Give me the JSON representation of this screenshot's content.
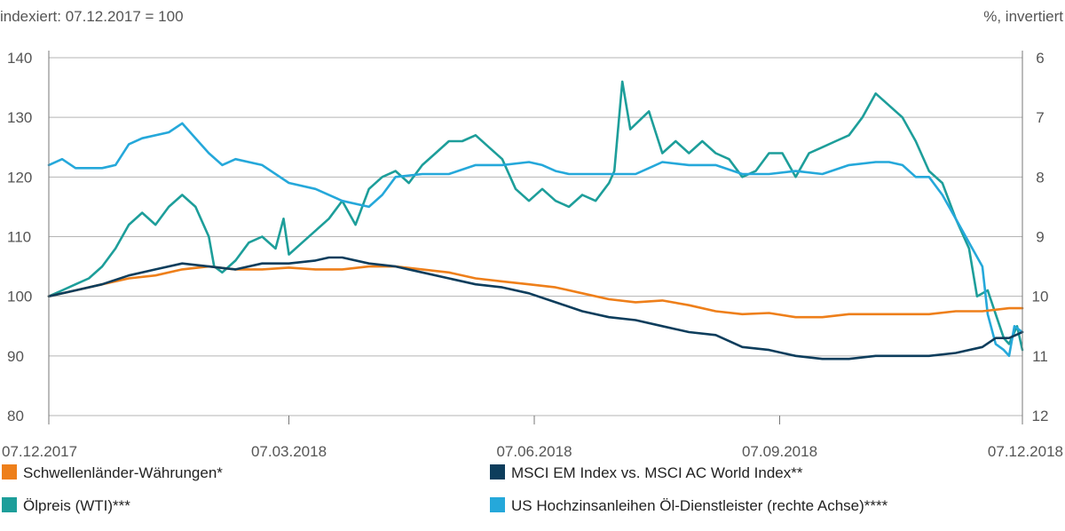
{
  "chart_data": {
    "type": "line",
    "left_axis_title": "indexiert: 07.12.2017 = 100",
    "right_axis_title": "%, invertiert",
    "y_left": {
      "ticks": [
        140,
        130,
        120,
        110,
        100,
        90,
        80
      ],
      "range": [
        80,
        140
      ]
    },
    "y_right": {
      "ticks": [
        6,
        7,
        8,
        9,
        10,
        11,
        12
      ],
      "range": [
        6,
        12
      ],
      "inverted": true
    },
    "x_axis": {
      "tick_labels": [
        "07.12.2017",
        "07.03.2018",
        "07.06.2018",
        "07.09.2018",
        "07.12.2018"
      ],
      "tick_days": [
        0,
        90,
        182,
        274,
        365
      ],
      "domain_days": [
        0,
        365
      ]
    },
    "grid": "horizontal",
    "legend_placement": "bottom",
    "series": [
      {
        "name": "Schwellenländer-Währungen*",
        "color": "#ee7f1a",
        "axis": "left",
        "points": [
          [
            0,
            100
          ],
          [
            10,
            101
          ],
          [
            20,
            102
          ],
          [
            30,
            103
          ],
          [
            40,
            103.5
          ],
          [
            50,
            104.5
          ],
          [
            60,
            105
          ],
          [
            70,
            104.5
          ],
          [
            80,
            104.5
          ],
          [
            90,
            104.8
          ],
          [
            100,
            104.5
          ],
          [
            110,
            104.5
          ],
          [
            120,
            105
          ],
          [
            130,
            105
          ],
          [
            140,
            104.5
          ],
          [
            150,
            104
          ],
          [
            160,
            103
          ],
          [
            170,
            102.5
          ],
          [
            180,
            102
          ],
          [
            190,
            101.5
          ],
          [
            200,
            100.5
          ],
          [
            210,
            99.5
          ],
          [
            220,
            99
          ],
          [
            230,
            99.3
          ],
          [
            240,
            98.5
          ],
          [
            250,
            97.5
          ],
          [
            260,
            97
          ],
          [
            270,
            97.2
          ],
          [
            280,
            96.5
          ],
          [
            290,
            96.5
          ],
          [
            300,
            97
          ],
          [
            310,
            97
          ],
          [
            320,
            97
          ],
          [
            330,
            97
          ],
          [
            340,
            97.5
          ],
          [
            350,
            97.5
          ],
          [
            360,
            98
          ],
          [
            365,
            98
          ]
        ]
      },
      {
        "name": "MSCI EM Index vs. MSCI AC World Index**",
        "color": "#0d3d5c",
        "axis": "left",
        "points": [
          [
            0,
            100
          ],
          [
            10,
            101
          ],
          [
            20,
            102
          ],
          [
            30,
            103.5
          ],
          [
            40,
            104.5
          ],
          [
            50,
            105.5
          ],
          [
            60,
            105
          ],
          [
            70,
            104.5
          ],
          [
            80,
            105.5
          ],
          [
            90,
            105.5
          ],
          [
            100,
            106
          ],
          [
            105,
            106.5
          ],
          [
            110,
            106.5
          ],
          [
            120,
            105.5
          ],
          [
            130,
            105
          ],
          [
            140,
            104
          ],
          [
            150,
            103
          ],
          [
            160,
            102
          ],
          [
            170,
            101.5
          ],
          [
            180,
            100.5
          ],
          [
            190,
            99
          ],
          [
            200,
            97.5
          ],
          [
            210,
            96.5
          ],
          [
            220,
            96
          ],
          [
            230,
            95
          ],
          [
            240,
            94
          ],
          [
            250,
            93.5
          ],
          [
            260,
            91.5
          ],
          [
            270,
            91
          ],
          [
            275,
            90.5
          ],
          [
            280,
            90
          ],
          [
            290,
            89.5
          ],
          [
            300,
            89.5
          ],
          [
            310,
            90
          ],
          [
            320,
            90
          ],
          [
            330,
            90
          ],
          [
            340,
            90.5
          ],
          [
            350,
            91.5
          ],
          [
            355,
            93
          ],
          [
            360,
            93
          ],
          [
            365,
            94
          ]
        ]
      },
      {
        "name": "Ölpreis (WTI)***",
        "color": "#1d9e9a",
        "axis": "left",
        "points": [
          [
            0,
            100
          ],
          [
            5,
            101
          ],
          [
            10,
            102
          ],
          [
            15,
            103
          ],
          [
            20,
            105
          ],
          [
            25,
            108
          ],
          [
            30,
            112
          ],
          [
            35,
            114
          ],
          [
            40,
            112
          ],
          [
            45,
            115
          ],
          [
            50,
            117
          ],
          [
            55,
            115
          ],
          [
            60,
            110
          ],
          [
            62,
            105
          ],
          [
            65,
            104
          ],
          [
            70,
            106
          ],
          [
            75,
            109
          ],
          [
            80,
            110
          ],
          [
            85,
            108
          ],
          [
            88,
            113
          ],
          [
            90,
            107
          ],
          [
            95,
            109
          ],
          [
            100,
            111
          ],
          [
            105,
            113
          ],
          [
            110,
            116
          ],
          [
            115,
            112
          ],
          [
            120,
            118
          ],
          [
            125,
            120
          ],
          [
            130,
            121
          ],
          [
            135,
            119
          ],
          [
            140,
            122
          ],
          [
            145,
            124
          ],
          [
            150,
            126
          ],
          [
            155,
            126
          ],
          [
            160,
            127
          ],
          [
            165,
            125
          ],
          [
            170,
            123
          ],
          [
            175,
            118
          ],
          [
            180,
            116
          ],
          [
            185,
            118
          ],
          [
            190,
            116
          ],
          [
            195,
            115
          ],
          [
            200,
            117
          ],
          [
            205,
            116
          ],
          [
            210,
            119
          ],
          [
            212,
            121
          ],
          [
            215,
            136
          ],
          [
            218,
            128
          ],
          [
            225,
            131
          ],
          [
            230,
            124
          ],
          [
            235,
            126
          ],
          [
            240,
            124
          ],
          [
            245,
            126
          ],
          [
            250,
            124
          ],
          [
            255,
            123
          ],
          [
            260,
            120
          ],
          [
            265,
            121
          ],
          [
            270,
            124
          ],
          [
            275,
            124
          ],
          [
            280,
            120
          ],
          [
            285,
            124
          ],
          [
            290,
            125
          ],
          [
            295,
            126
          ],
          [
            300,
            127
          ],
          [
            305,
            130
          ],
          [
            310,
            134
          ],
          [
            315,
            132
          ],
          [
            320,
            130
          ],
          [
            325,
            126
          ],
          [
            330,
            121
          ],
          [
            335,
            119
          ],
          [
            340,
            113
          ],
          [
            345,
            108
          ],
          [
            348,
            100
          ],
          [
            352,
            101
          ],
          [
            355,
            97
          ],
          [
            358,
            93
          ],
          [
            360,
            92
          ],
          [
            363,
            95
          ],
          [
            365,
            91
          ]
        ]
      },
      {
        "name": "US Hochzinsanleihen Öl-Dienstleister (rechte Achse)****",
        "color": "#25a8da",
        "axis": "right",
        "points": [
          [
            0,
            7.8
          ],
          [
            5,
            7.7
          ],
          [
            10,
            7.85
          ],
          [
            20,
            7.85
          ],
          [
            25,
            7.8
          ],
          [
            30,
            7.45
          ],
          [
            35,
            7.35
          ],
          [
            45,
            7.25
          ],
          [
            50,
            7.1
          ],
          [
            55,
            7.35
          ],
          [
            60,
            7.6
          ],
          [
            65,
            7.8
          ],
          [
            70,
            7.7
          ],
          [
            80,
            7.8
          ],
          [
            90,
            8.1
          ],
          [
            100,
            8.2
          ],
          [
            110,
            8.4
          ],
          [
            120,
            8.5
          ],
          [
            125,
            8.3
          ],
          [
            130,
            8.0
          ],
          [
            140,
            7.95
          ],
          [
            150,
            7.95
          ],
          [
            160,
            7.8
          ],
          [
            170,
            7.8
          ],
          [
            180,
            7.75
          ],
          [
            185,
            7.8
          ],
          [
            190,
            7.9
          ],
          [
            195,
            7.95
          ],
          [
            200,
            7.95
          ],
          [
            210,
            7.95
          ],
          [
            220,
            7.95
          ],
          [
            225,
            7.85
          ],
          [
            230,
            7.75
          ],
          [
            240,
            7.8
          ],
          [
            250,
            7.8
          ],
          [
            260,
            7.95
          ],
          [
            270,
            7.95
          ],
          [
            280,
            7.9
          ],
          [
            290,
            7.95
          ],
          [
            300,
            7.8
          ],
          [
            310,
            7.75
          ],
          [
            315,
            7.75
          ],
          [
            320,
            7.8
          ],
          [
            325,
            8.0
          ],
          [
            330,
            8.0
          ],
          [
            335,
            8.3
          ],
          [
            340,
            8.7
          ],
          [
            345,
            9.1
          ],
          [
            350,
            9.5
          ],
          [
            352,
            10.3
          ],
          [
            355,
            10.8
          ],
          [
            358,
            10.9
          ],
          [
            360,
            11.0
          ],
          [
            362,
            10.5
          ],
          [
            365,
            10.6
          ]
        ]
      }
    ]
  }
}
